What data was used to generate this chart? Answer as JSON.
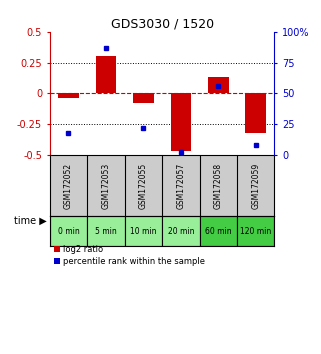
{
  "title": "GDS3030 / 1520",
  "samples": [
    "GSM172052",
    "GSM172053",
    "GSM172055",
    "GSM172057",
    "GSM172058",
    "GSM172059"
  ],
  "time_labels": [
    "0 min",
    "5 min",
    "10 min",
    "20 min",
    "60 min",
    "120 min"
  ],
  "log2_ratio": [
    -0.04,
    0.3,
    -0.08,
    -0.47,
    0.13,
    -0.32
  ],
  "percentile_rank": [
    18,
    87,
    22,
    2,
    56,
    8
  ],
  "ylim_left": [
    -0.5,
    0.5
  ],
  "ylim_right": [
    0,
    100
  ],
  "yticks_left": [
    -0.5,
    -0.25,
    0,
    0.25,
    0.5
  ],
  "yticks_right": [
    0,
    25,
    50,
    75,
    100
  ],
  "bar_color": "#cc0000",
  "dot_color": "#0000cc",
  "zero_line_color": "#cc0000",
  "grid_color": "#000000",
  "bg_color": "#ffffff",
  "sample_box_color": "#cccccc",
  "time_box_color_light": "#99ee99",
  "time_box_color_dark": "#44cc44",
  "legend_log2_color": "#cc0000",
  "legend_pct_color": "#0000cc"
}
